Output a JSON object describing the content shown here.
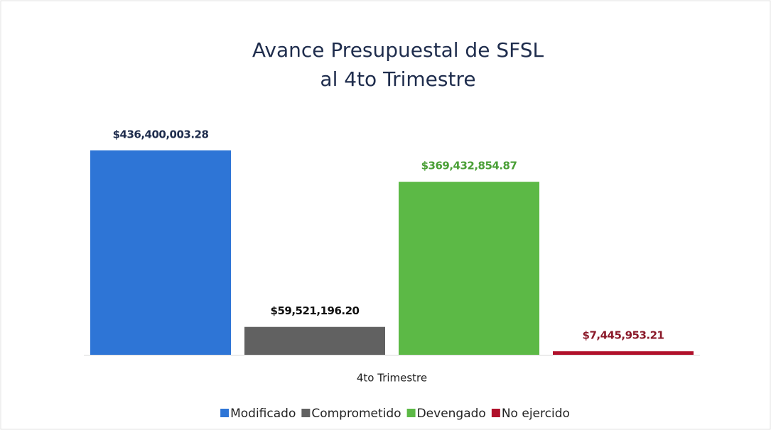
{
  "chart_data": {
    "type": "bar",
    "title": [
      "Avance Presupuestal de SFSL",
      "al 4to Trimestre"
    ],
    "categories": [
      "4to Trimestre"
    ],
    "series": [
      {
        "name": "Modificado",
        "color": "#2e75d6",
        "label_color": "#1f2d4d",
        "values": [
          436400003.28
        ],
        "value_labels": [
          "$436,400,003.28"
        ]
      },
      {
        "name": "Comprometido",
        "color": "#616161",
        "label_color": "#111111",
        "values": [
          59521196.2
        ],
        "value_labels": [
          "$59,521,196.20"
        ]
      },
      {
        "name": "Devengado",
        "color": "#5cb946",
        "label_color": "#4a9f36",
        "values": [
          369432854.87
        ],
        "value_labels": [
          "$369,432,854.87"
        ]
      },
      {
        "name": "No ejercido",
        "color": "#b0102a",
        "label_color": "#8b1a2a",
        "values": [
          7445953.21
        ],
        "value_labels": [
          "$7,445,953.21"
        ]
      }
    ],
    "ylim": [
      0,
      450000000
    ],
    "legend": "bottom"
  }
}
